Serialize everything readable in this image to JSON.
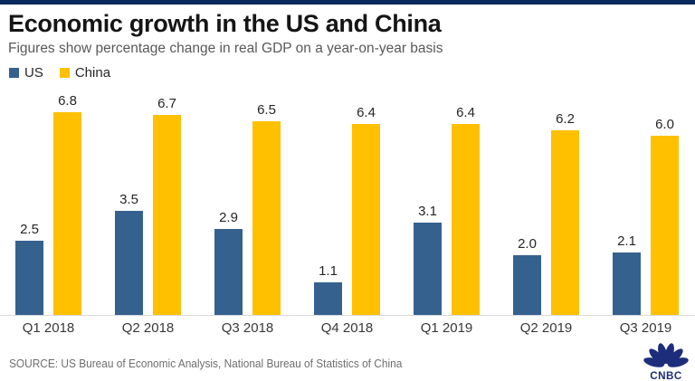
{
  "header": {
    "title": "Economic growth in the US and China",
    "subtitle": "Figures show percentage change in real GDP on a year-on-year basis"
  },
  "chart_data": {
    "type": "bar",
    "categories": [
      "Q1 2018",
      "Q2 2018",
      "Q3 2018",
      "Q4 2018",
      "Q1 2019",
      "Q2 2019",
      "Q3 2019"
    ],
    "series": [
      {
        "name": "US",
        "color": "#35618F",
        "values": [
          2.5,
          3.5,
          2.9,
          1.1,
          3.1,
          2.0,
          2.1
        ]
      },
      {
        "name": "China",
        "color": "#FFC000",
        "values": [
          6.8,
          6.7,
          6.5,
          6.4,
          6.4,
          6.2,
          6.0
        ]
      }
    ],
    "title": "Economic growth in the US and China",
    "xlabel": "",
    "ylabel": "",
    "ylim": [
      0,
      7.5
    ],
    "grid": false,
    "legend_position": "top-left",
    "value_labels": true
  },
  "footer": {
    "source": "SOURCE: US Bureau of Economic Analysis, National Bureau of Statistics of China",
    "logo_text": "CNBC"
  },
  "colors": {
    "top_strip": "#0A2A5C",
    "axis_line": "#D9D9D9",
    "logo": "#1E2D7B"
  }
}
